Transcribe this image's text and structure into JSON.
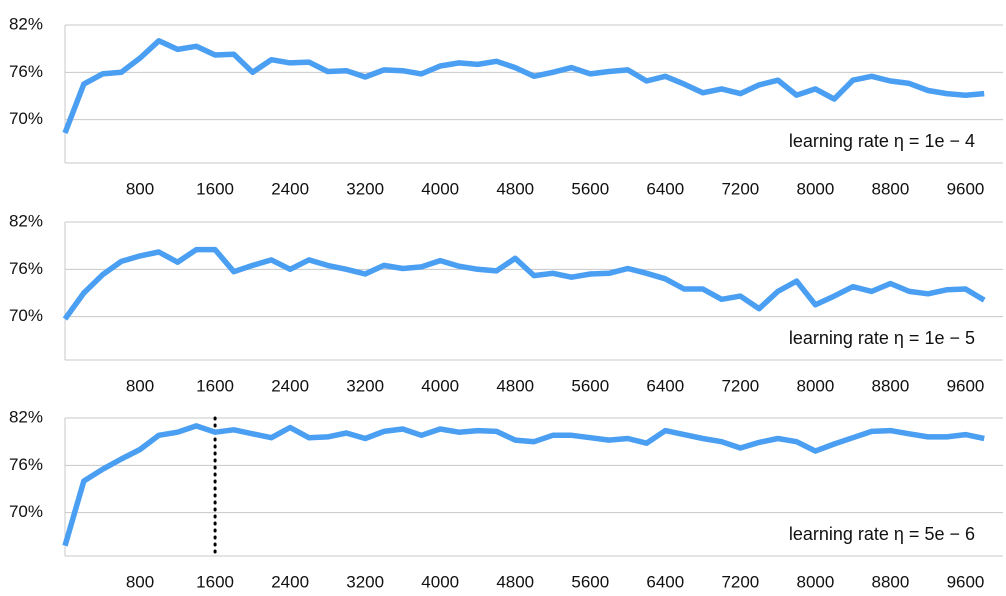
{
  "chart_data": [
    {
      "type": "line",
      "annotation": "learning rate η = 1e − 4",
      "grid": true,
      "xlim": [
        0,
        10000
      ],
      "ylim": [
        64.5,
        82
      ],
      "xticks": [
        800,
        1600,
        2400,
        3200,
        4000,
        4800,
        5600,
        6400,
        7200,
        8000,
        8800,
        9600
      ],
      "yticks": [
        {
          "value": 70,
          "label": "70%"
        },
        {
          "value": 76,
          "label": "76%"
        },
        {
          "value": 82,
          "label": "82%"
        }
      ],
      "x": [
        0,
        200,
        400,
        600,
        800,
        1000,
        1200,
        1400,
        1600,
        1800,
        2000,
        2200,
        2400,
        2600,
        2800,
        3000,
        3200,
        3400,
        3600,
        3800,
        4000,
        4200,
        4400,
        4600,
        4800,
        5000,
        5200,
        5400,
        5600,
        5800,
        6000,
        6200,
        6400,
        6600,
        6800,
        7000,
        7200,
        7400,
        7600,
        7800,
        8000,
        8200,
        8400,
        8600,
        8800,
        9000,
        9200,
        9400,
        9600,
        9800
      ],
      "series": [
        {
          "color": "#4a9ff2",
          "values": [
            68.3,
            74.5,
            75.8,
            76,
            77.8,
            80,
            78.9,
            79.3,
            78.2,
            78.3,
            76,
            77.6,
            77.2,
            77.3,
            76.1,
            76.2,
            75.4,
            76.3,
            76.2,
            75.8,
            76.8,
            77.2,
            77,
            77.4,
            76.6,
            75.5,
            76,
            76.6,
            75.8,
            76.1,
            76.3,
            74.9,
            75.5,
            74.5,
            73.4,
            73.9,
            73.3,
            74.4,
            75,
            73.1,
            73.9,
            72.6,
            75,
            75.5,
            74.9,
            74.6,
            73.7,
            73.3,
            73.1,
            73.3
          ]
        }
      ]
    },
    {
      "type": "line",
      "annotation": "learning rate η = 1e − 5",
      "grid": true,
      "xlim": [
        0,
        10000
      ],
      "ylim": [
        64.5,
        82
      ],
      "xticks": [
        800,
        1600,
        2400,
        3200,
        4000,
        4800,
        5600,
        6400,
        7200,
        8000,
        8800,
        9600
      ],
      "yticks": [
        {
          "value": 70,
          "label": "70%"
        },
        {
          "value": 76,
          "label": "76%"
        },
        {
          "value": 82,
          "label": "82%"
        }
      ],
      "x": [
        0,
        200,
        400,
        600,
        800,
        1000,
        1200,
        1400,
        1600,
        1800,
        2000,
        2200,
        2400,
        2600,
        2800,
        3000,
        3200,
        3400,
        3600,
        3800,
        4000,
        4200,
        4400,
        4600,
        4800,
        5000,
        5200,
        5400,
        5600,
        5800,
        6000,
        6200,
        6400,
        6600,
        6800,
        7000,
        7200,
        7400,
        7600,
        7800,
        8000,
        8200,
        8400,
        8600,
        8800,
        9000,
        9200,
        9400,
        9600,
        9800
      ],
      "series": [
        {
          "color": "#4a9ff2",
          "values": [
            69.7,
            73,
            75.3,
            77,
            77.7,
            78.2,
            76.9,
            78.5,
            78.5,
            75.7,
            76.5,
            77.2,
            76,
            77.2,
            76.5,
            76,
            75.4,
            76.5,
            76.1,
            76.3,
            77.1,
            76.4,
            76,
            75.8,
            77.4,
            75.2,
            75.5,
            75,
            75.4,
            75.5,
            76.1,
            75.5,
            74.8,
            73.5,
            73.5,
            72.2,
            72.6,
            71,
            73.2,
            74.5,
            71.5,
            72.6,
            73.8,
            73.2,
            74.2,
            73.2,
            72.9,
            73.4,
            73.5,
            72.1
          ]
        }
      ]
    },
    {
      "type": "line",
      "annotation": "learning rate η = 5e − 6",
      "grid": true,
      "vline": 1600,
      "xlim": [
        0,
        10000
      ],
      "ylim": [
        64.5,
        82
      ],
      "xticks": [
        800,
        1600,
        2400,
        3200,
        4000,
        4800,
        5600,
        6400,
        7200,
        8000,
        8800,
        9600
      ],
      "yticks": [
        {
          "value": 70,
          "label": "70%"
        },
        {
          "value": 76,
          "label": "76%"
        },
        {
          "value": 82,
          "label": "82%"
        }
      ],
      "x": [
        0,
        200,
        400,
        600,
        800,
        1000,
        1200,
        1400,
        1600,
        1800,
        2000,
        2200,
        2400,
        2600,
        2800,
        3000,
        3200,
        3400,
        3600,
        3800,
        4000,
        4200,
        4400,
        4600,
        4800,
        5000,
        5200,
        5400,
        5600,
        5800,
        6000,
        6200,
        6400,
        6600,
        6800,
        7000,
        7200,
        7400,
        7600,
        7800,
        8000,
        8200,
        8400,
        8600,
        8800,
        9000,
        9200,
        9400,
        9600,
        9800
      ],
      "series": [
        {
          "color": "#4a9ff2",
          "values": [
            65.8,
            74,
            75.5,
            76.8,
            78,
            79.8,
            80.2,
            81,
            80.2,
            80.5,
            80,
            79.5,
            80.8,
            79.5,
            79.6,
            80.1,
            79.4,
            80.3,
            80.6,
            79.8,
            80.6,
            80.2,
            80.4,
            80.3,
            79.2,
            79,
            79.8,
            79.8,
            79.5,
            79.2,
            79.4,
            78.8,
            80.4,
            79.9,
            79.4,
            79,
            78.2,
            78.9,
            79.4,
            79,
            77.8,
            78.7,
            79.5,
            80.3,
            80.4,
            80,
            79.6,
            79.6,
            79.9,
            79.4
          ]
        }
      ]
    }
  ]
}
